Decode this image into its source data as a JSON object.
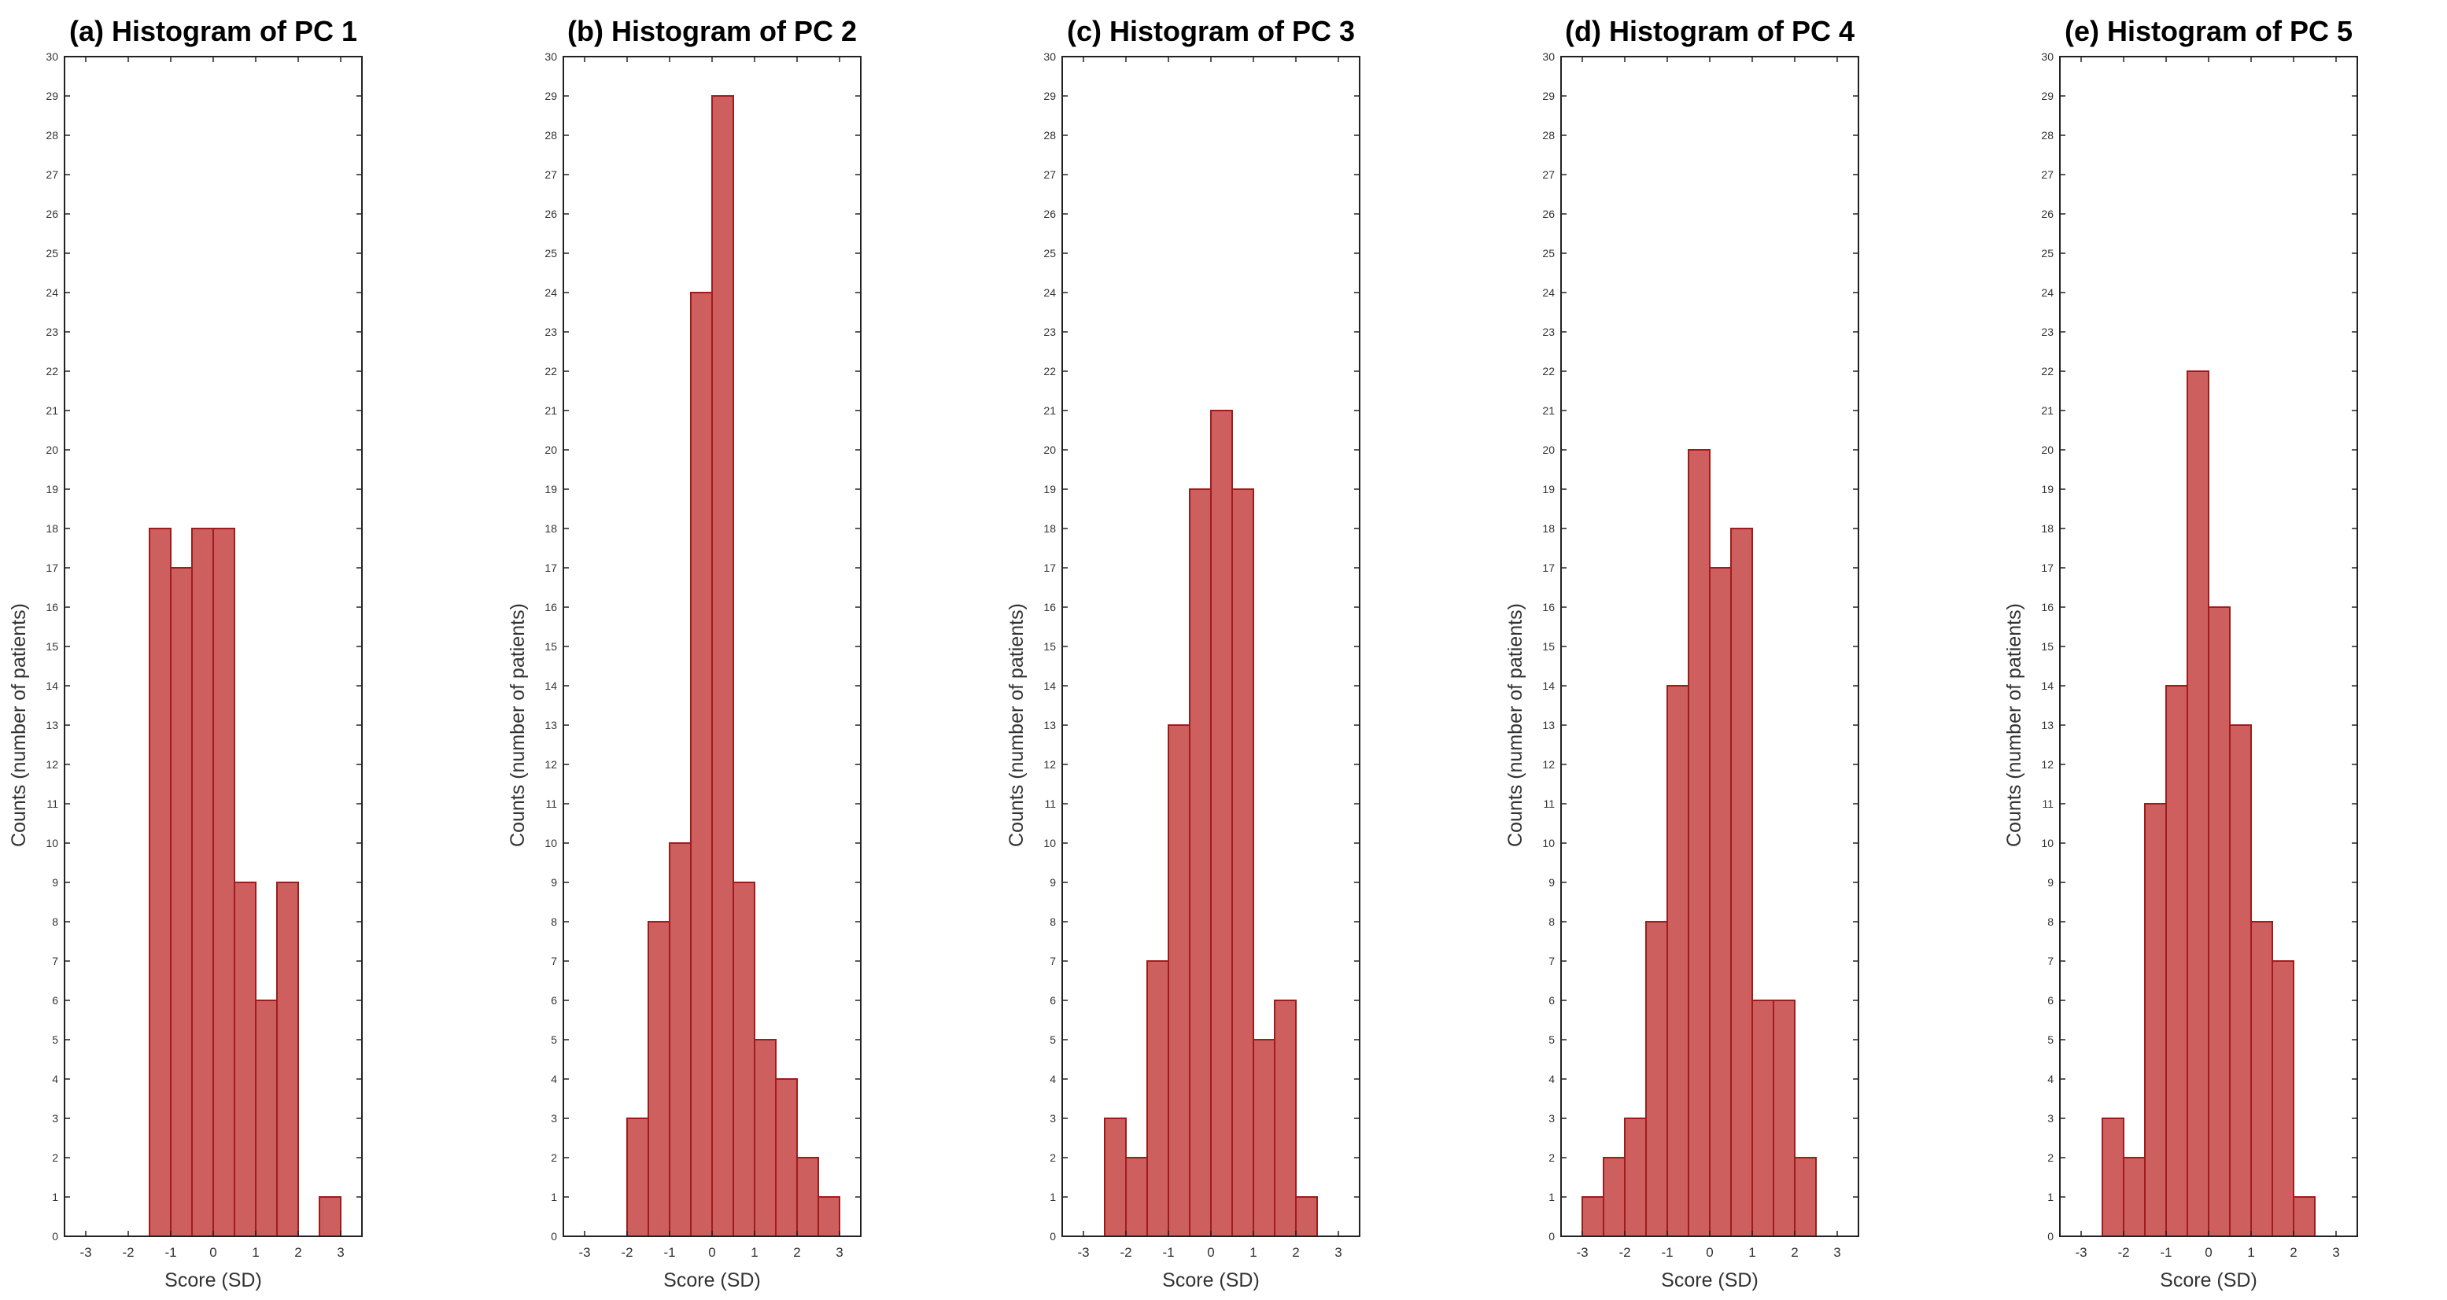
{
  "figure": {
    "background": "#ffffff",
    "bar_fill": "#cd5f5f",
    "bar_edge": "#a01c1c"
  },
  "chart_data": [
    {
      "type": "bar",
      "title": "(a) Histogram of PC 1",
      "xlabel": "Score (SD)",
      "ylabel": "Counts (number of patients)",
      "xlim": [
        -3.5,
        3.5
      ],
      "ylim": [
        0,
        30
      ],
      "xticks": [
        -3,
        -2,
        -1,
        0,
        1,
        2,
        3
      ],
      "yticks": [
        0,
        1,
        2,
        3,
        4,
        5,
        6,
        7,
        8,
        9,
        10,
        11,
        12,
        13,
        14,
        15,
        16,
        17,
        18,
        19,
        20,
        21,
        22,
        23,
        24,
        25,
        26,
        27,
        28,
        29,
        30
      ],
      "bin_edges": [
        -1.5,
        -1.0,
        -0.5,
        0.0,
        0.5,
        1.0,
        1.5,
        2.0,
        2.5,
        3.0
      ],
      "values": [
        18,
        17,
        18,
        18,
        9,
        6,
        9,
        0,
        1
      ]
    },
    {
      "type": "bar",
      "title": "(b) Histogram of PC 2",
      "xlabel": "Score (SD)",
      "ylabel": "Counts (number of patients)",
      "xlim": [
        -3.5,
        3.5
      ],
      "ylim": [
        0,
        30
      ],
      "xticks": [
        -3,
        -2,
        -1,
        0,
        1,
        2,
        3
      ],
      "yticks": [
        0,
        1,
        2,
        3,
        4,
        5,
        6,
        7,
        8,
        9,
        10,
        11,
        12,
        13,
        14,
        15,
        16,
        17,
        18,
        19,
        20,
        21,
        22,
        23,
        24,
        25,
        26,
        27,
        28,
        29,
        30
      ],
      "bin_edges": [
        -2.0,
        -1.5,
        -1.0,
        -0.5,
        0.0,
        0.5,
        1.0,
        1.5,
        2.0,
        2.5,
        3.0
      ],
      "values": [
        3,
        8,
        10,
        24,
        29,
        9,
        5,
        4,
        2,
        1
      ]
    },
    {
      "type": "bar",
      "title": "(c) Histogram of PC 3",
      "xlabel": "Score (SD)",
      "ylabel": "Counts (number of patients)",
      "xlim": [
        -3.5,
        3.5
      ],
      "ylim": [
        0,
        30
      ],
      "xticks": [
        -3,
        -2,
        -1,
        0,
        1,
        2,
        3
      ],
      "yticks": [
        0,
        1,
        2,
        3,
        4,
        5,
        6,
        7,
        8,
        9,
        10,
        11,
        12,
        13,
        14,
        15,
        16,
        17,
        18,
        19,
        20,
        21,
        22,
        23,
        24,
        25,
        26,
        27,
        28,
        29,
        30
      ],
      "bin_edges": [
        -2.5,
        -2.0,
        -1.5,
        -1.0,
        -0.5,
        0.0,
        0.5,
        1.0,
        1.5,
        2.0,
        2.5
      ],
      "values": [
        3,
        2,
        7,
        13,
        19,
        21,
        19,
        5,
        6,
        1
      ]
    },
    {
      "type": "bar",
      "title": "(d) Histogram of PC 4",
      "xlabel": "Score (SD)",
      "ylabel": "Counts (number of patients)",
      "xlim": [
        -3.5,
        3.5
      ],
      "ylim": [
        0,
        30
      ],
      "xticks": [
        -3,
        -2,
        -1,
        0,
        1,
        2,
        3
      ],
      "yticks": [
        0,
        1,
        2,
        3,
        4,
        5,
        6,
        7,
        8,
        9,
        10,
        11,
        12,
        13,
        14,
        15,
        16,
        17,
        18,
        19,
        20,
        21,
        22,
        23,
        24,
        25,
        26,
        27,
        28,
        29,
        30
      ],
      "bin_edges": [
        -3.0,
        -2.5,
        -2.0,
        -1.5,
        -1.0,
        -0.5,
        0.0,
        0.5,
        1.0,
        1.5,
        2.0,
        2.5
      ],
      "values": [
        1,
        2,
        3,
        8,
        14,
        20,
        17,
        18,
        6,
        6,
        2
      ]
    },
    {
      "type": "bar",
      "title": "(e) Histogram of PC 5",
      "xlabel": "Score (SD)",
      "ylabel": "Counts (number of patients)",
      "xlim": [
        -3.5,
        3.5
      ],
      "ylim": [
        0,
        30
      ],
      "xticks": [
        -3,
        -2,
        -1,
        0,
        1,
        2,
        3
      ],
      "yticks": [
        0,
        1,
        2,
        3,
        4,
        5,
        6,
        7,
        8,
        9,
        10,
        11,
        12,
        13,
        14,
        15,
        16,
        17,
        18,
        19,
        20,
        21,
        22,
        23,
        24,
        25,
        26,
        27,
        28,
        29,
        30
      ],
      "bin_edges": [
        -2.5,
        -2.0,
        -1.5,
        -1.0,
        -0.5,
        0.0,
        0.5,
        1.0,
        1.5,
        2.0,
        2.5
      ],
      "values": [
        3,
        2,
        11,
        14,
        22,
        16,
        13,
        8,
        7,
        1
      ]
    }
  ]
}
